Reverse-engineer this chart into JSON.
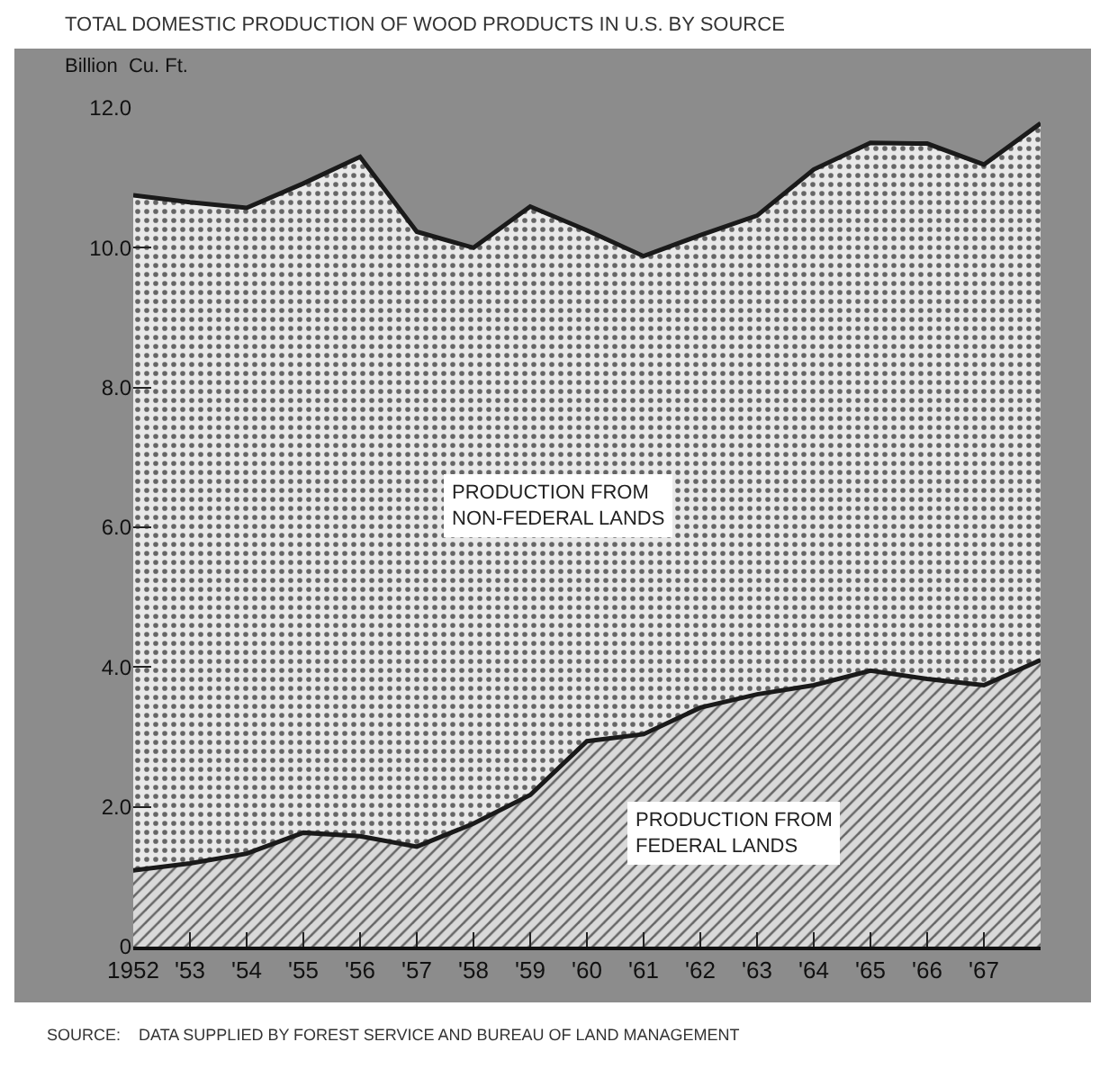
{
  "chart_data": {
    "type": "area",
    "title": "TOTAL DOMESTIC PRODUCTION OF WOOD PRODUCTS IN U.S. BY SOURCE",
    "ylabel": "Billion  Cu. Ft.",
    "stacked": true,
    "grid": false,
    "legend": false,
    "x": [
      1952,
      1953,
      1954,
      1955,
      1956,
      1957,
      1958,
      1959,
      1960,
      1961,
      1962,
      1963,
      1964,
      1965,
      1966,
      1967,
      1968
    ],
    "series": [
      {
        "name": "PRODUCTION FROM\nFEDERAL LANDS",
        "color": "#d9d9d9",
        "values": [
          1.09,
          1.19,
          1.33,
          1.63,
          1.58,
          1.43,
          1.76,
          2.17,
          2.94,
          3.04,
          3.42,
          3.61,
          3.74,
          3.95,
          3.83,
          3.74,
          4.1
        ]
      },
      {
        "name": "PRODUCTION FROM\nNON-FEDERAL LANDS",
        "color": "#e8e8e8",
        "values": [
          9.66,
          9.46,
          9.24,
          9.29,
          9.72,
          8.8,
          8.24,
          8.42,
          7.31,
          6.84,
          6.76,
          6.85,
          7.38,
          7.55,
          7.66,
          7.45,
          7.68
        ]
      }
    ],
    "xlim": [
      1952,
      1968
    ],
    "xticks": [
      1952,
      {
        "value": 1953,
        "label": "'53"
      },
      {
        "value": 1954,
        "label": "'54"
      },
      {
        "value": 1955,
        "label": "'55"
      },
      {
        "value": 1956,
        "label": "'56"
      },
      {
        "value": 1957,
        "label": "'57"
      },
      {
        "value": 1958,
        "label": "'58"
      },
      {
        "value": 1959,
        "label": "'59"
      },
      {
        "value": 1960,
        "label": "'60"
      },
      {
        "value": 1961,
        "label": "'61"
      },
      {
        "value": 1962,
        "label": "'62"
      },
      {
        "value": 1963,
        "label": "'63"
      },
      {
        "value": 1964,
        "label": "'64"
      },
      {
        "value": 1965,
        "label": "'65"
      },
      {
        "value": 1966,
        "label": "'66"
      },
      {
        "value": 1967,
        "label": "'67"
      }
    ],
    "ylim": [
      0,
      12
    ],
    "yticks": [
      0,
      {
        "value": 2,
        "label": "2.0"
      },
      {
        "value": 4,
        "label": "4.0"
      },
      {
        "value": 6,
        "label": "6.0"
      },
      {
        "value": 8,
        "label": "8.0"
      },
      {
        "value": 10,
        "label": "10.0"
      },
      {
        "value": 12,
        "label": "12.0"
      }
    ],
    "annotations": [
      "SOURCE:    DATA SUPPLIED BY FOREST SERVICE AND BUREAU OF LAND MANAGEMENT"
    ]
  }
}
